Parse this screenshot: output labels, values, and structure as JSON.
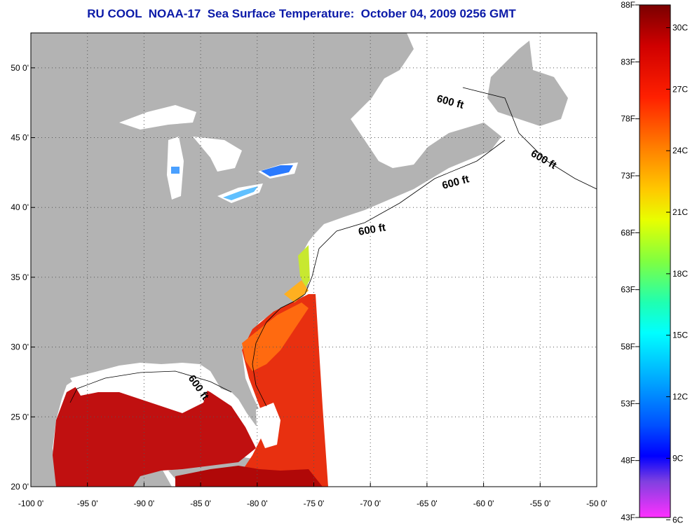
{
  "title": "RU COOL  NOAA-17  Sea Surface Temperature:  October 04, 2009 0256 GMT",
  "map": {
    "lon_range": [
      -100,
      -50
    ],
    "lat_range": [
      20,
      52.5
    ],
    "x_ticks": [
      "-100 0'",
      "-95 0'",
      "-90 0'",
      "-85 0'",
      "-80 0'",
      "-75 0'",
      "-70 0'",
      "-65 0'",
      "-60 0'",
      "-55 0'",
      "-50 0'"
    ],
    "y_ticks": [
      "50 0'",
      "45 0'",
      "40 0'",
      "35 0'",
      "30 0'",
      "25 0'",
      "20 0'"
    ],
    "land_color": "#b3b3b3",
    "no_data_color": "#ffffff",
    "isobath_labels": [
      "600 ft",
      "600 ft",
      "600 ft",
      "600 ft",
      "600 ft"
    ],
    "grid": "dotted"
  },
  "colorbar": {
    "f_labels": [
      "88F",
      "83F",
      "78F",
      "73F",
      "68F",
      "63F",
      "58F",
      "53F",
      "48F",
      "43F"
    ],
    "c_labels": [
      "30C",
      "27C",
      "24C",
      "21C",
      "18C",
      "15C",
      "12C",
      "9C",
      "6C"
    ],
    "colors": [
      "#8b0000",
      "#ff0000",
      "#ff8000",
      "#ffd000",
      "#c0ff00",
      "#40ff80",
      "#00ffff",
      "#00a0ff",
      "#0000ff",
      "#8040ff",
      "#ff40ff"
    ]
  }
}
